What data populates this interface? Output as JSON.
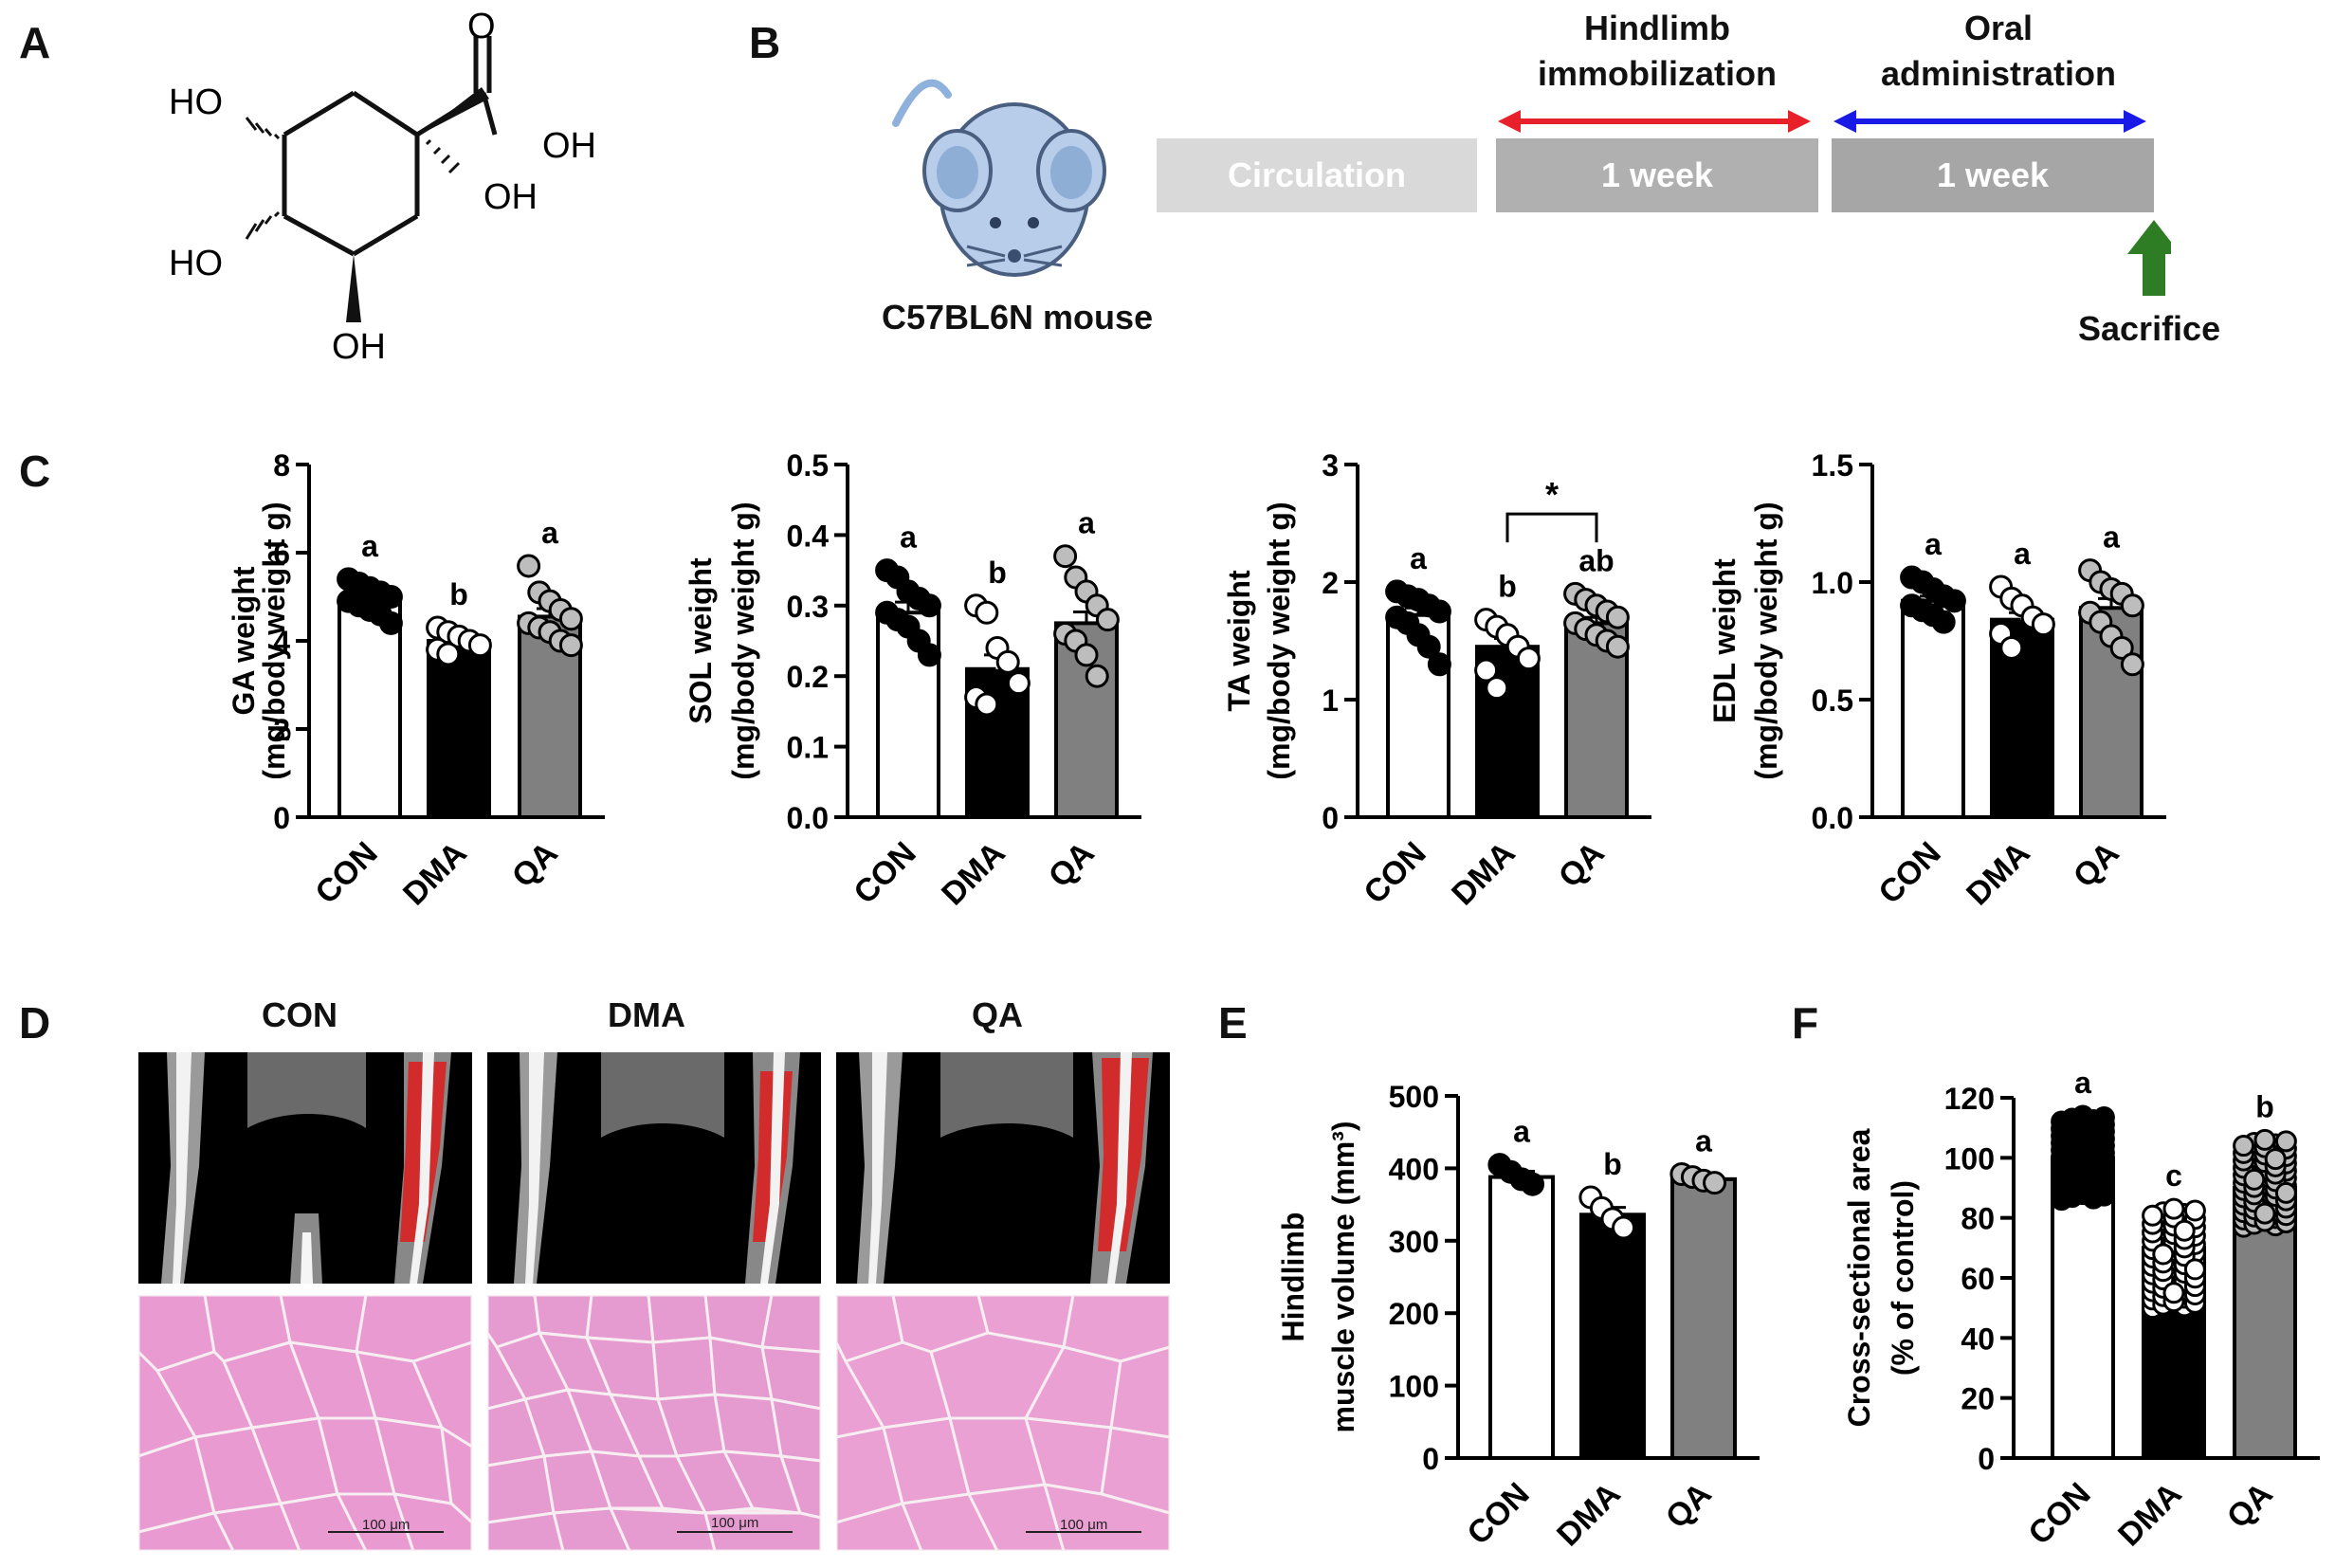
{
  "panels": {
    "a": "A",
    "b": "B",
    "c": "C",
    "d": "D",
    "e": "E",
    "f": "F"
  },
  "structure": {
    "o": "O",
    "oh_acid": "OH",
    "oh_c1": "OH",
    "ho_top": "HO",
    "ho_mid": "HO",
    "oh_bottom": "OH"
  },
  "timeline": {
    "mouse_label": "C57BL6N mouse",
    "mouse_icon": "mouse-icon",
    "boxes": [
      "Circulation",
      "1 week",
      "1 week"
    ],
    "hindlimb_title_line1": "Hindlimb",
    "hindlimb_title_line2": "immobilization",
    "oral_title_line1": "Oral",
    "oral_title_line2": "administration",
    "sacrifice_label": "Sacrifice",
    "colors": {
      "red_arrow": "#e8202a",
      "blue_arrow": "#1a1ae6",
      "green_arrow": "#2e7d24",
      "box_light": "#d9d9d9",
      "box_dark": "#b0b0b0"
    }
  },
  "group_headers": [
    "CON",
    "DMA",
    "QA"
  ],
  "scale_bars": [
    "100 μm",
    "100 μm",
    "100 μm"
  ],
  "chart_data": [
    {
      "type": "bar",
      "panel": "C",
      "categories": [
        "CON",
        "DMA",
        "QA"
      ],
      "values": [
        4.95,
        4.0,
        4.55
      ],
      "errors": [
        0.1,
        0.08,
        0.18
      ],
      "significance": [
        "a",
        "b",
        "a"
      ],
      "points": [
        [
          5.4,
          5.3,
          5.2,
          5.1,
          5.0,
          4.9,
          4.8,
          4.7,
          4.6,
          4.4
        ],
        [
          4.3,
          4.2,
          4.1,
          4.0,
          3.9,
          3.8,
          3.7
        ],
        [
          5.7,
          5.1,
          4.9,
          4.7,
          4.5,
          4.4,
          4.3,
          4.2,
          4.0,
          3.9
        ]
      ],
      "ylabel": [
        "GA weight",
        "(mg/body weight g)"
      ],
      "yticks": [
        "0",
        "2",
        "4",
        "6",
        "8"
      ],
      "ylim": [
        0,
        8
      ]
    },
    {
      "type": "bar",
      "panel": "C",
      "categories": [
        "CON",
        "DMA",
        "QA"
      ],
      "values": [
        0.29,
        0.21,
        0.275
      ],
      "errors": [
        0.015,
        0.02,
        0.016
      ],
      "significance": [
        "a",
        "b",
        "a"
      ],
      "points": [
        [
          0.35,
          0.34,
          0.32,
          0.31,
          0.3,
          0.29,
          0.28,
          0.27,
          0.25,
          0.23
        ],
        [
          0.3,
          0.29,
          0.24,
          0.22,
          0.19,
          0.17,
          0.16
        ],
        [
          0.37,
          0.34,
          0.32,
          0.3,
          0.28,
          0.26,
          0.25,
          0.23,
          0.2
        ]
      ],
      "ylabel": [
        "SOL weight",
        "(mg/body weight g)"
      ],
      "yticks": [
        "0.0",
        "0.1",
        "0.2",
        "0.3",
        "0.4",
        "0.5"
      ],
      "ylim": [
        0,
        0.5
      ]
    },
    {
      "type": "bar",
      "panel": "C",
      "categories": [
        "CON",
        "DMA",
        "QA"
      ],
      "values": [
        1.72,
        1.45,
        1.65
      ],
      "errors": [
        0.06,
        0.07,
        0.05
      ],
      "significance": [
        "a",
        "b",
        "ab"
      ],
      "bracket": {
        "from": "DMA",
        "to": "QA",
        "label": "*"
      },
      "points": [
        [
          1.92,
          1.88,
          1.85,
          1.8,
          1.75,
          1.7,
          1.65,
          1.55,
          1.45,
          1.3
        ],
        [
          1.68,
          1.62,
          1.55,
          1.45,
          1.35,
          1.25,
          1.1
        ],
        [
          1.9,
          1.85,
          1.8,
          1.75,
          1.7,
          1.65,
          1.6,
          1.55,
          1.5,
          1.45
        ]
      ],
      "ylabel": [
        "TA weight",
        "(mg/body weight g)"
      ],
      "yticks": [
        "0",
        "1",
        "2",
        "3"
      ],
      "ylim": [
        0,
        3
      ]
    },
    {
      "type": "bar",
      "panel": "C",
      "categories": [
        "CON",
        "DMA",
        "QA"
      ],
      "values": [
        0.92,
        0.84,
        0.89
      ],
      "errors": [
        0.02,
        0.03,
        0.04
      ],
      "significance": [
        "a",
        "a",
        "a"
      ],
      "points": [
        [
          1.02,
          1.0,
          0.97,
          0.94,
          0.92,
          0.9,
          0.88,
          0.86,
          0.83
        ],
        [
          0.98,
          0.93,
          0.9,
          0.85,
          0.82,
          0.78,
          0.72
        ],
        [
          1.05,
          1.0,
          0.97,
          0.95,
          0.9,
          0.87,
          0.83,
          0.77,
          0.72,
          0.65
        ]
      ],
      "ylabel": [
        "EDL weight",
        "(mg/body weight g)"
      ],
      "yticks": [
        "0.0",
        "0.5",
        "1.0",
        "1.5"
      ],
      "ylim": [
        0,
        1.5
      ]
    },
    {
      "type": "bar",
      "panel": "E",
      "categories": [
        "CON",
        "DMA",
        "QA"
      ],
      "values": [
        388,
        336,
        385
      ],
      "errors": [
        8,
        10,
        4
      ],
      "significance": [
        "a",
        "b",
        "a"
      ],
      "points": [
        [
          405,
          395,
          385,
          378
        ],
        [
          360,
          345,
          330,
          318
        ],
        [
          392,
          388,
          383,
          380
        ]
      ],
      "ylabel": [
        "Hindlimb",
        "muscle volume (mm³)"
      ],
      "yticks": [
        "0",
        "100",
        "200",
        "300",
        "400",
        "500"
      ],
      "ylim": [
        0,
        500
      ]
    },
    {
      "type": "bar",
      "panel": "F",
      "categories": [
        "CON",
        "DMA",
        "QA"
      ],
      "values": [
        100,
        70,
        90
      ],
      "errors": [
        1.0,
        1.2,
        1.0
      ],
      "significance": [
        "a",
        "c",
        "b"
      ],
      "points_range": [
        [
          86,
          114
        ],
        [
          50,
          83
        ],
        [
          77,
          106
        ]
      ],
      "ylabel": [
        "Cross-sectional area",
        "(% of control)"
      ],
      "yticks": [
        "0",
        "20",
        "40",
        "60",
        "80",
        "100",
        "120"
      ],
      "ylim": [
        0,
        120
      ]
    }
  ]
}
